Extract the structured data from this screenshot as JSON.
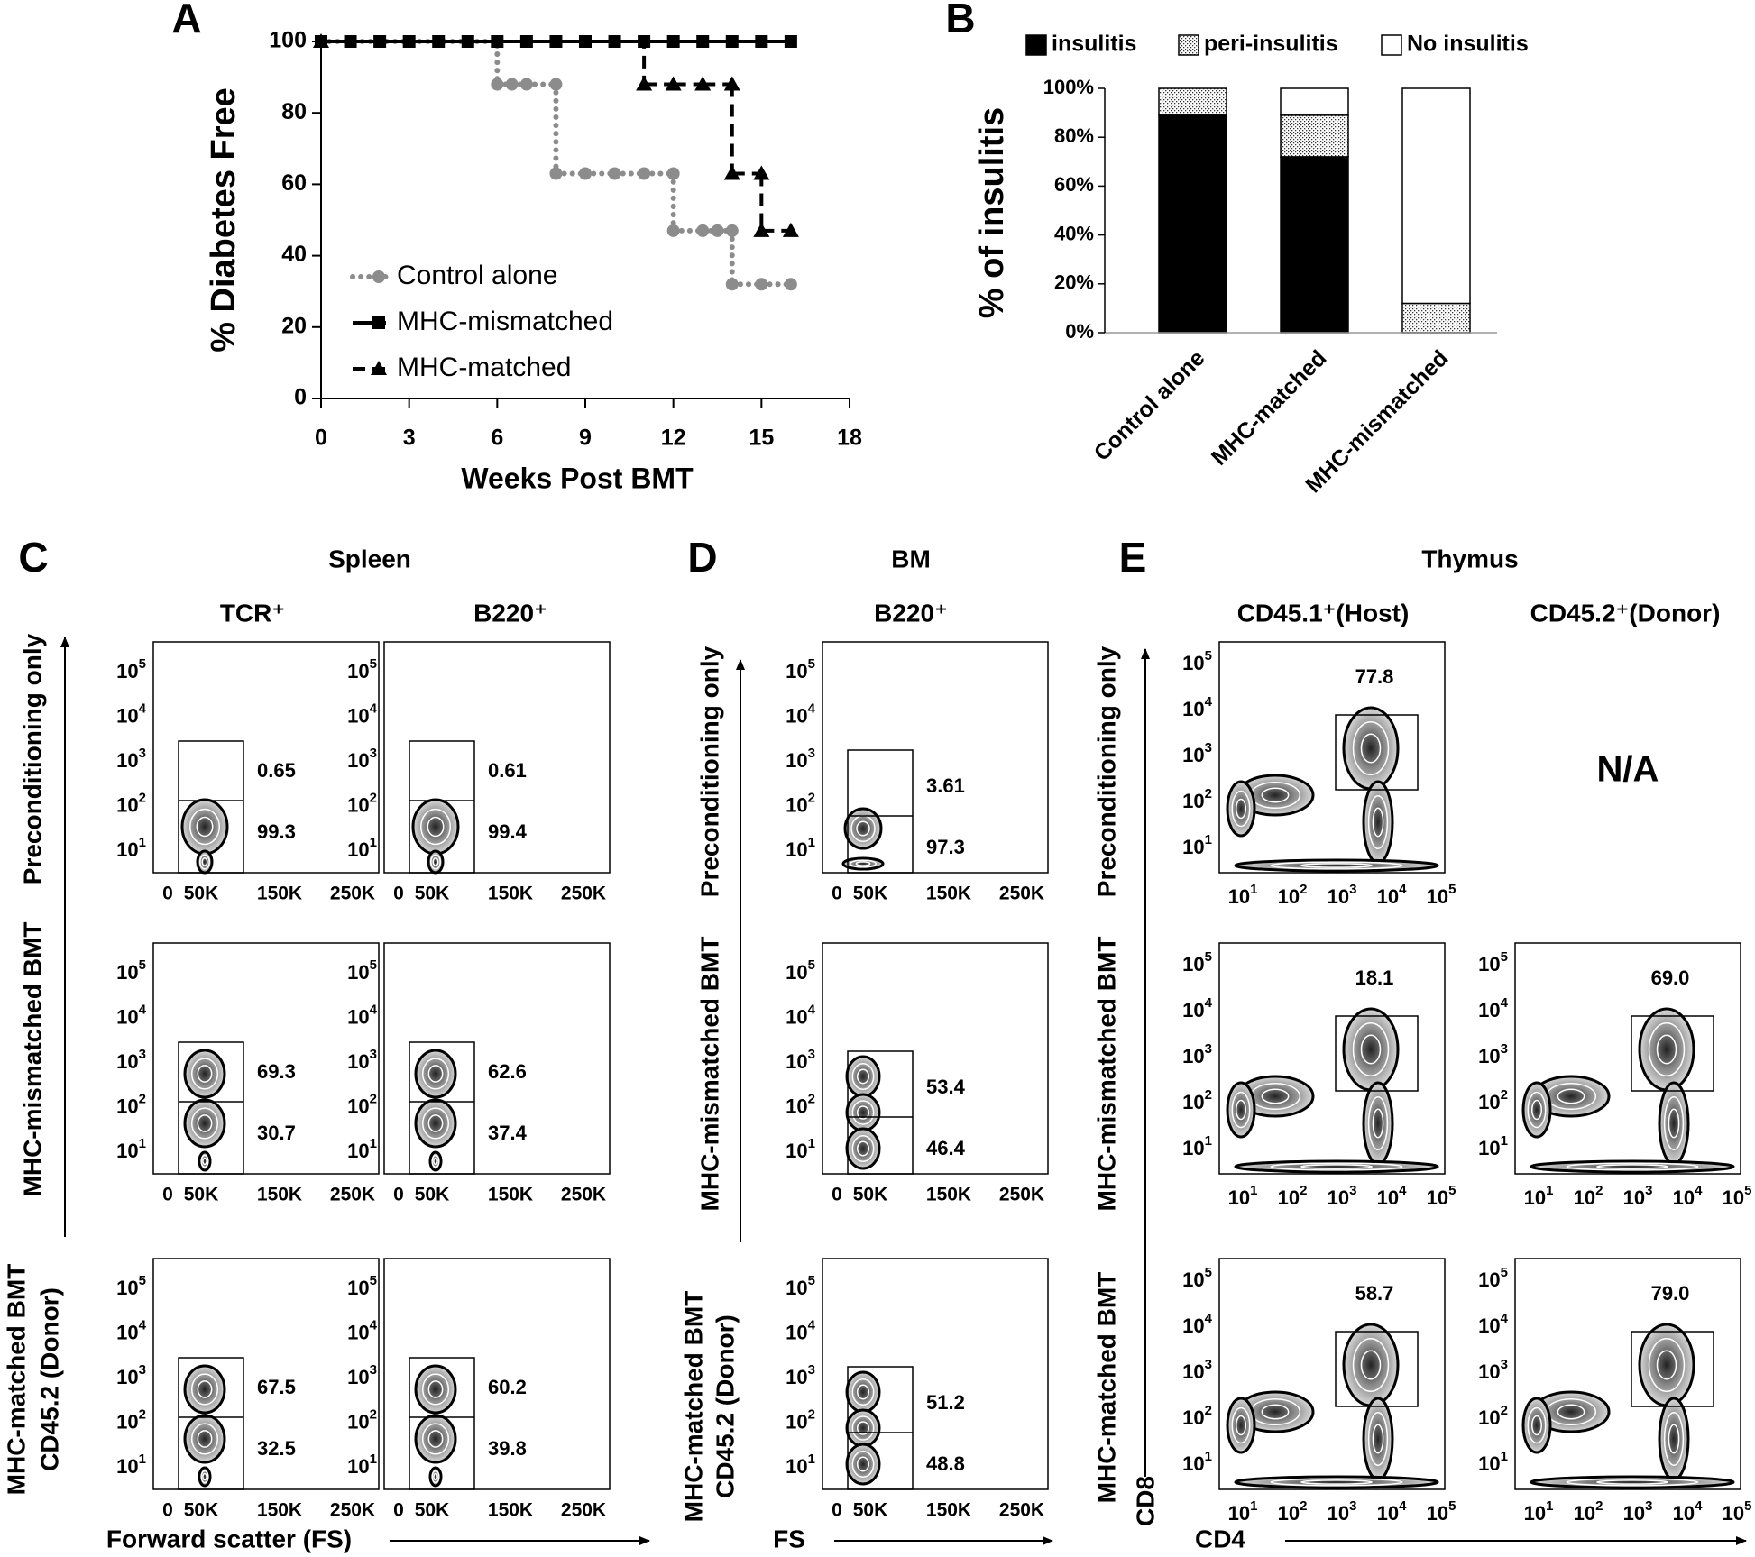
{
  "chart_data": [
    {
      "type": "line",
      "panel_label": "A",
      "xlabel": "Weeks Post BMT",
      "ylabel": "% Diabetes Free",
      "xlim": [
        0,
        18
      ],
      "xticks": [
        0,
        3,
        6,
        9,
        12,
        15,
        18
      ],
      "ylim": [
        0,
        100
      ],
      "yticks": [
        0,
        20,
        40,
        60,
        80,
        100
      ],
      "legend": "lower left",
      "series": [
        {
          "name": "Control alone",
          "color": "#8c8c8c",
          "marker": "circle",
          "dash": "dotted",
          "x": [
            0,
            6,
            6.5,
            7,
            8,
            8,
            9,
            10,
            11,
            12,
            12,
            13,
            13.5,
            14,
            14,
            15,
            16
          ],
          "values": [
            100,
            88,
            88,
            88,
            88,
            63,
            63,
            63,
            63,
            63,
            47,
            47,
            47,
            47,
            32,
            32,
            32
          ]
        },
        {
          "name": "MHC-mismatched",
          "color": "#000000",
          "marker": "square",
          "dash": "solid",
          "x": [
            0,
            1,
            2,
            3,
            4,
            5,
            6,
            7,
            8,
            9,
            10,
            11,
            12,
            13,
            14,
            15,
            16
          ],
          "values": [
            100,
            100,
            100,
            100,
            100,
            100,
            100,
            100,
            100,
            100,
            100,
            100,
            100,
            100,
            100,
            100,
            100
          ]
        },
        {
          "name": "MHC-matched",
          "color": "#000000",
          "marker": "triangle",
          "dash": "dashed",
          "x": [
            0,
            11,
            12,
            13,
            14,
            14,
            15,
            15,
            16
          ],
          "values": [
            100,
            88,
            88,
            88,
            88,
            63,
            63,
            47,
            47
          ]
        }
      ]
    },
    {
      "type": "bar",
      "stacked": true,
      "panel_label": "B",
      "ylabel": "% of insulitis",
      "legend": "top",
      "categories": [
        "Control alone",
        "MHC-matched",
        "MHC-mismatched"
      ],
      "ylim": [
        0,
        100
      ],
      "yticks": [
        {
          "value": 0,
          "label": "0%"
        },
        {
          "value": 20,
          "label": "20%"
        },
        {
          "value": 40,
          "label": "40%"
        },
        {
          "value": 60,
          "label": "60%"
        },
        {
          "value": 80,
          "label": "80%"
        },
        {
          "value": 100,
          "label": "100%"
        }
      ],
      "series": [
        {
          "name": "insulitis",
          "color": "#000000",
          "values": [
            89,
            72,
            0
          ]
        },
        {
          "name": "peri-insulitis",
          "color": "#ffffff",
          "pattern": "dots",
          "values": [
            11,
            17,
            12
          ]
        },
        {
          "name": "No insulitis",
          "color": "#ffffff",
          "values": [
            0,
            11,
            88
          ]
        }
      ]
    }
  ],
  "flow_axes": {
    "log_base": "10",
    "log_exponents": [
      "1",
      "2",
      "3",
      "4",
      "5"
    ],
    "fs_ticks": [
      "0",
      "50K",
      "150K",
      "250K"
    ]
  },
  "flow_panels": [
    {
      "panel_label": "C",
      "title": "Spleen",
      "columns": [
        "TCR⁺",
        "B220⁺"
      ],
      "row_labels": [
        "Preconditioning only",
        "MHC-mismatched BMT",
        "MHC-matched BMT"
      ],
      "y_axis_label": "CD45.2 (Donor)",
      "x_axis_label": "Forward scatter (FS)",
      "gates": [
        [
          [
            "0.65",
            "99.3"
          ],
          [
            "0.61",
            "99.4"
          ]
        ],
        [
          [
            "69.3",
            "30.7"
          ],
          [
            "62.6",
            "37.4"
          ]
        ],
        [
          [
            "67.5",
            "32.5"
          ],
          [
            "60.2",
            "39.8"
          ]
        ]
      ]
    },
    {
      "panel_label": "D",
      "title": "BM",
      "columns": [
        "B220⁺"
      ],
      "row_labels": [
        "Preconditioning only",
        "MHC-mismatched BMT",
        "MHC-matched BMT"
      ],
      "y_axis_label": "CD45.2 (Donor)",
      "x_axis_label": "FS",
      "gates": [
        [
          [
            "3.61",
            "97.3"
          ]
        ],
        [
          [
            "53.4",
            "46.4"
          ]
        ],
        [
          [
            "51.2",
            "48.8"
          ]
        ]
      ]
    },
    {
      "panel_label": "E",
      "title": "Thymus",
      "columns": [
        "CD45.1⁺(Host)",
        "CD45.2⁺(Donor)"
      ],
      "row_labels": [
        "Preconditioning only",
        "MHC-mismatched BMT",
        "MHC-matched BMT"
      ],
      "y_axis_label": "CD8",
      "x_axis_label": "CD4",
      "na_label": "N/A",
      "gates": [
        [
          [
            "77.8"
          ],
          null
        ],
        [
          [
            "18.1"
          ],
          [
            "69.0"
          ]
        ],
        [
          [
            "58.7"
          ],
          [
            "79.0"
          ]
        ]
      ]
    }
  ]
}
